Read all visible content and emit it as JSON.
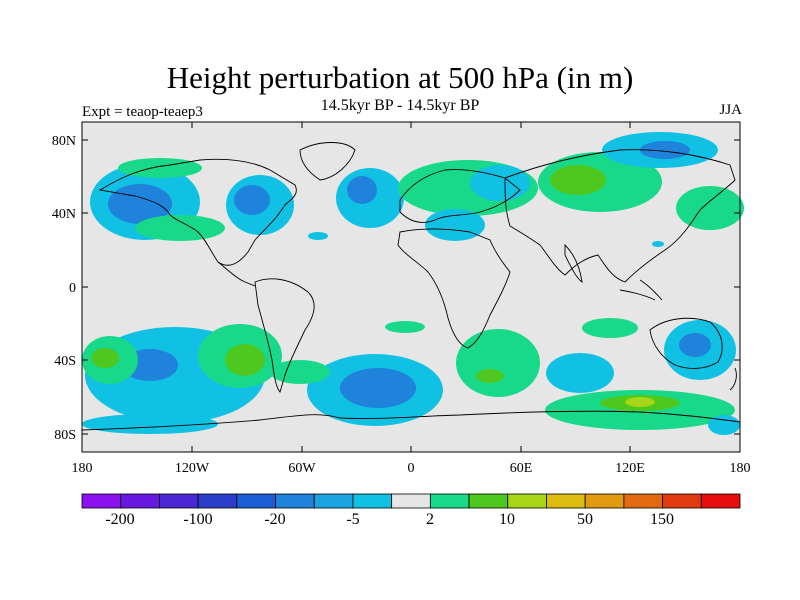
{
  "title": "Height perturbation at 500 hPa (in m)",
  "subtitle": "14.5kyr BP - 14.5kyr BP",
  "left_label": "Expt = teaop-teaep3",
  "right_label": "JJA",
  "map": {
    "lat_ticks": [
      "80N",
      "40N",
      "0",
      "40S",
      "80S"
    ],
    "lon_ticks": [
      "180",
      "120W",
      "60W",
      "0",
      "60E",
      "120E",
      "180"
    ]
  },
  "colorbar": {
    "colors": [
      "#8b12ef",
      "#6818e0",
      "#4a26d4",
      "#2c3ec9",
      "#1a5fd6",
      "#1f82db",
      "#1aa3e0",
      "#11c1e3",
      "#e6e6e6",
      "#18d88a",
      "#4ec81f",
      "#a6d616",
      "#dcbc0e",
      "#e09a10",
      "#e26a10",
      "#e23a10",
      "#e60e0e"
    ],
    "labels": [
      "-200",
      "-100",
      "-20",
      "-5",
      "2",
      "10",
      "50",
      "150"
    ]
  }
}
